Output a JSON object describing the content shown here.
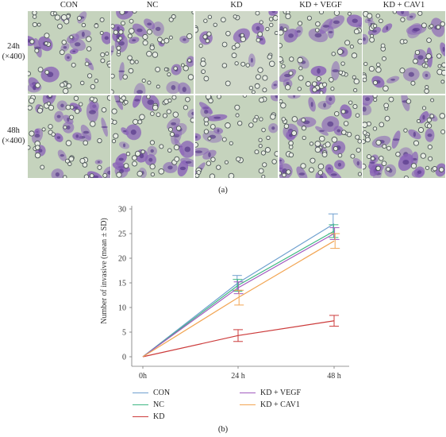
{
  "panel_a": {
    "columns": [
      "CON",
      "NC",
      "KD",
      "KD + VEGF",
      "KD + CAV1"
    ],
    "rows": [
      {
        "line1": "24h",
        "line2": "(×400)"
      },
      {
        "line1": "48h",
        "line2": "(×400)"
      }
    ],
    "cell_density": [
      [
        0.55,
        0.6,
        0.15,
        0.55,
        0.6
      ],
      [
        0.85,
        0.8,
        0.3,
        0.8,
        0.8
      ]
    ],
    "caption": "(a)"
  },
  "panel_b": {
    "caption": "(b)"
  },
  "colors": {
    "stain": "#8a63b8",
    "background": "#c9d6c0"
  },
  "chart_data": {
    "type": "line",
    "x": [
      "0h",
      "24 h",
      "48 h"
    ],
    "xlabel": "",
    "ylabel": "Number of invasive (mean ± SD)",
    "ylim": [
      0,
      30
    ],
    "yticks": [
      0,
      5,
      10,
      15,
      20,
      25,
      30
    ],
    "grid": false,
    "legend_position": "bottom",
    "series": [
      {
        "name": "CON",
        "color": "#6fa0cf",
        "values": [
          0,
          15,
          27
        ],
        "sd": [
          0,
          1.5,
          2
        ]
      },
      {
        "name": "NC",
        "color": "#3fb783",
        "values": [
          0,
          14.5,
          25.5
        ],
        "sd": [
          0,
          1.2,
          1.3
        ]
      },
      {
        "name": "KD",
        "color": "#cc3b3b",
        "values": [
          0,
          4.3,
          7.3
        ],
        "sd": [
          0,
          1.2,
          1.1
        ]
      },
      {
        "name": "KD + VEGF",
        "color": "#a25bbf",
        "values": [
          0,
          14,
          25
        ],
        "sd": [
          0,
          1.2,
          1.2
        ]
      },
      {
        "name": "KD + CAV1",
        "color": "#f2a553",
        "values": [
          0,
          12,
          23.5
        ],
        "sd": [
          0,
          1.5,
          1.5
        ]
      }
    ]
  }
}
